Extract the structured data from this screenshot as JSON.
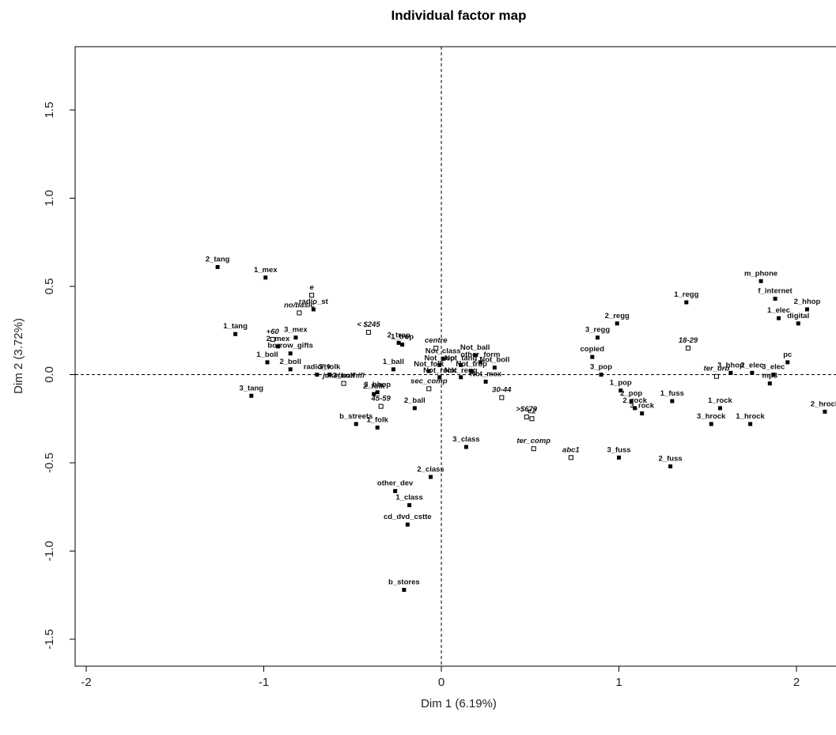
{
  "chart_data": {
    "type": "scatter",
    "title": "Individual factor map",
    "xlabel": "Dim 1 (6.19%)",
    "ylabel": "Dim 2 (3.72%)",
    "xlim": [
      -2.05,
      2.22
    ],
    "ylim": [
      -1.76,
      1.85
    ],
    "x_ticks": [
      -2,
      -1,
      0,
      1,
      2
    ],
    "x_tick_labels": [
      "-2",
      "-1",
      "0",
      "1",
      "2"
    ],
    "y_ticks": [
      -1.5,
      -1.0,
      -0.5,
      0.0,
      0.5,
      1.0,
      1.5
    ],
    "y_tick_labels": [
      "-1.5",
      "-1.0",
      "-0.5",
      "0.0",
      "0.5",
      "1.0",
      "1.5"
    ],
    "reference_lines": {
      "x": 0,
      "y": 0,
      "style": "dashed"
    },
    "grid": false,
    "series": [
      {
        "marker": "filled-square",
        "points": [
          {
            "label": "2_tang",
            "x": -1.26,
            "y": 0.61
          },
          {
            "label": "1_mex",
            "x": -0.99,
            "y": 0.55
          },
          {
            "label": "radio_st",
            "x": -0.72,
            "y": 0.37
          },
          {
            "label": "1_tang",
            "x": -1.16,
            "y": 0.23
          },
          {
            "label": "3_mex",
            "x": -0.82,
            "y": 0.21
          },
          {
            "label": "2_mex",
            "x": -0.92,
            "y": 0.16
          },
          {
            "label": "borrow_gifts",
            "x": -0.85,
            "y": 0.12
          },
          {
            "label": "1_boll",
            "x": -0.98,
            "y": 0.07
          },
          {
            "label": "2_boll",
            "x": -0.85,
            "y": 0.03
          },
          {
            "label": "3_tang",
            "x": -1.07,
            "y": -0.12
          },
          {
            "label": "3_folk",
            "x": -0.63,
            "y": 0.0
          },
          {
            "label": "3_boll",
            "x": -0.55,
            "y": -0.05
          },
          {
            "label": "radio/tv",
            "x": -0.7,
            "y": 0.0
          },
          {
            "label": "2_folk",
            "x": -0.38,
            "y": -0.11
          },
          {
            "label": "3_hhop",
            "x": -0.36,
            "y": -0.1
          },
          {
            "label": "b_streets",
            "x": -0.48,
            "y": -0.28
          },
          {
            "label": "1_folk",
            "x": -0.36,
            "y": -0.3
          },
          {
            "label": "2_trop",
            "x": -0.24,
            "y": 0.18
          },
          {
            "label": "1_trop",
            "x": -0.22,
            "y": 0.17
          },
          {
            "label": "1_ball",
            "x": -0.27,
            "y": 0.03
          },
          {
            "label": "2_ball",
            "x": -0.15,
            "y": -0.19
          },
          {
            "label": "Not_class",
            "x": 0.01,
            "y": 0.09
          },
          {
            "label": "Not_ball",
            "x": 0.19,
            "y": 0.11
          },
          {
            "label": "other_form",
            "x": 0.22,
            "y": 0.07
          },
          {
            "label": "Not_mex",
            "x": 0.25,
            "y": -0.04
          },
          {
            "label": "Not_boll",
            "x": 0.3,
            "y": 0.04
          },
          {
            "label": "3_class",
            "x": 0.14,
            "y": -0.41
          },
          {
            "label": "2_class",
            "x": -0.06,
            "y": -0.58
          },
          {
            "label": "other_dev",
            "x": -0.26,
            "y": -0.66
          },
          {
            "label": "1_class",
            "x": -0.18,
            "y": -0.74
          },
          {
            "label": "cd_dvd_cstte",
            "x": -0.19,
            "y": -0.85
          },
          {
            "label": "b_stores",
            "x": -0.21,
            "y": -1.22
          },
          {
            "label": "3_regg",
            "x": 0.88,
            "y": 0.21
          },
          {
            "label": "2_regg",
            "x": 0.99,
            "y": 0.29
          },
          {
            "label": "1_regg",
            "x": 1.38,
            "y": 0.41
          },
          {
            "label": "copied",
            "x": 0.85,
            "y": 0.1
          },
          {
            "label": "3_pop",
            "x": 0.9,
            "y": 0.0
          },
          {
            "label": "1_pop",
            "x": 1.01,
            "y": -0.09
          },
          {
            "label": "2_pop",
            "x": 1.07,
            "y": -0.15
          },
          {
            "label": "2_rock",
            "x": 1.09,
            "y": -0.19
          },
          {
            "label": "3_rock",
            "x": 1.13,
            "y": -0.22
          },
          {
            "label": "1_fuss",
            "x": 1.3,
            "y": -0.15
          },
          {
            "label": "3_fuss",
            "x": 1.0,
            "y": -0.47
          },
          {
            "label": "2_fuss",
            "x": 1.29,
            "y": -0.52
          },
          {
            "label": "1_rock",
            "x": 1.57,
            "y": -0.19
          },
          {
            "label": "3_hrock",
            "x": 1.52,
            "y": -0.28
          },
          {
            "label": "1_hrock",
            "x": 1.74,
            "y": -0.28
          },
          {
            "label": "2_hrock",
            "x": 2.16,
            "y": -0.21
          },
          {
            "label": "m_phone",
            "x": 1.8,
            "y": 0.53
          },
          {
            "label": "f_internet",
            "x": 1.88,
            "y": 0.43
          },
          {
            "label": "2_hhop",
            "x": 2.06,
            "y": 0.37
          },
          {
            "label": "1_elec",
            "x": 1.9,
            "y": 0.32
          },
          {
            "label": "digital",
            "x": 2.01,
            "y": 0.29
          },
          {
            "label": "pc",
            "x": 1.95,
            "y": 0.07
          },
          {
            "label": "3_hhop",
            "x": 1.63,
            "y": 0.01
          },
          {
            "label": "2_elec",
            "x": 1.75,
            "y": 0.01
          },
          {
            "label": "3_elec",
            "x": 1.87,
            "y": 0.0
          },
          {
            "label": "mp3",
            "x": 1.85,
            "y": -0.05
          }
        ]
      },
      {
        "marker": "open-square",
        "points": [
          {
            "label": "e",
            "x": -0.73,
            "y": 0.45
          },
          {
            "label": "no/basic",
            "x": -0.8,
            "y": 0.35
          },
          {
            "label": "+60",
            "x": -0.95,
            "y": 0.2
          },
          {
            "label": "< $245",
            "x": -0.41,
            "y": 0.24
          },
          {
            "label": "centre",
            "x": -0.03,
            "y": 0.15
          },
          {
            "label": "jukebox/hifi",
            "x": -0.55,
            "y": -0.05
          },
          {
            "label": "45-59",
            "x": -0.34,
            "y": -0.18
          },
          {
            "label": "sec_comp",
            "x": -0.07,
            "y": -0.08
          },
          {
            "label": "30-44",
            "x": 0.34,
            "y": -0.13
          },
          {
            "label": ">$679",
            "x": 0.48,
            "y": -0.24
          },
          {
            "label": "c2",
            "x": 0.51,
            "y": -0.25
          },
          {
            "label": "ter_comp",
            "x": 0.52,
            "y": -0.42
          },
          {
            "label": "abc1",
            "x": 0.73,
            "y": -0.47
          },
          {
            "label": "18-29",
            "x": 1.39,
            "y": 0.15
          },
          {
            "label": "ter_urb",
            "x": 1.55,
            "y": -0.01
          }
        ]
      }
    ],
    "center_cluster_labels": [
      "Not_trop",
      "Not_tang",
      "Not_pop",
      "Not_folk",
      "Not_rock",
      "Not_regg"
    ]
  }
}
